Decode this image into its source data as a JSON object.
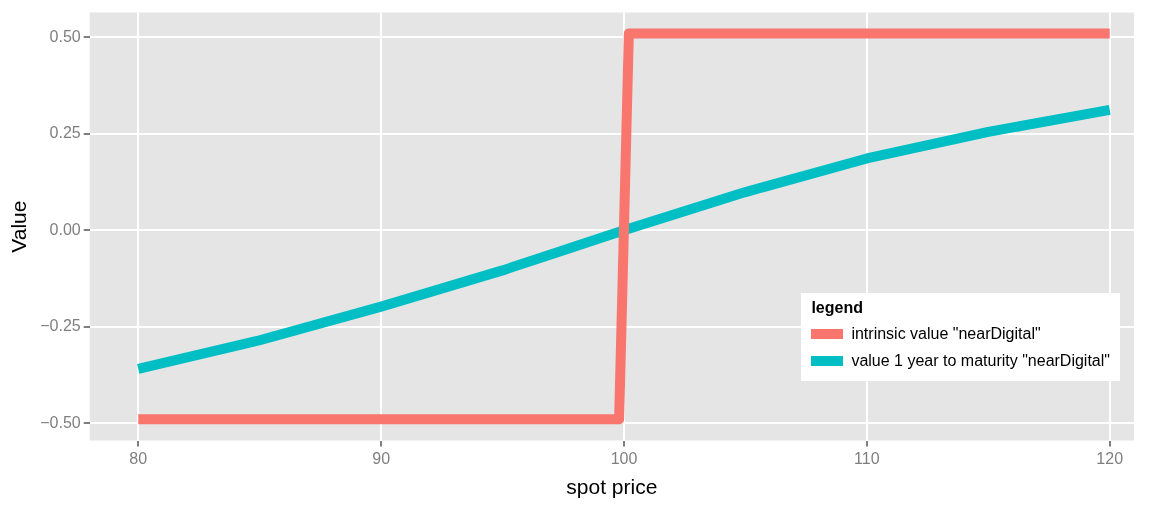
{
  "chart_data": {
    "type": "line",
    "xlabel": "spot price",
    "ylabel": "Value",
    "legend_title": "legend",
    "xlim": [
      78,
      121
    ],
    "xticks": [
      80,
      90,
      100,
      110,
      120
    ],
    "ylim": [
      -0.545,
      0.564
    ],
    "yticks": [
      {
        "value": -0.5,
        "label": "−0.50"
      },
      {
        "value": -0.25,
        "label": "−0.25"
      },
      {
        "value": 0,
        "label": "0.00"
      },
      {
        "value": 0.25,
        "label": "0.25"
      },
      {
        "value": 0.5,
        "label": "0.50"
      }
    ],
    "grid": true,
    "legend": "bottom right",
    "marker": "none",
    "line_style": "solid",
    "series": [
      {
        "name": "intrinsic value \"nearDigital\"",
        "color": "#f8766d",
        "x": [
          80,
          99.8,
          100.2,
          120
        ],
        "values": [
          -0.49,
          -0.49,
          0.51,
          0.51
        ]
      },
      {
        "name": "value 1 year to maturity \"nearDigital\"",
        "color": "#00bfc4",
        "x": [
          80,
          85,
          90,
          95,
          100,
          105,
          110,
          115,
          120
        ],
        "values": [
          -0.359,
          -0.285,
          -0.198,
          -0.104,
          0,
          0.099,
          0.186,
          0.255,
          0.312
        ]
      }
    ]
  }
}
